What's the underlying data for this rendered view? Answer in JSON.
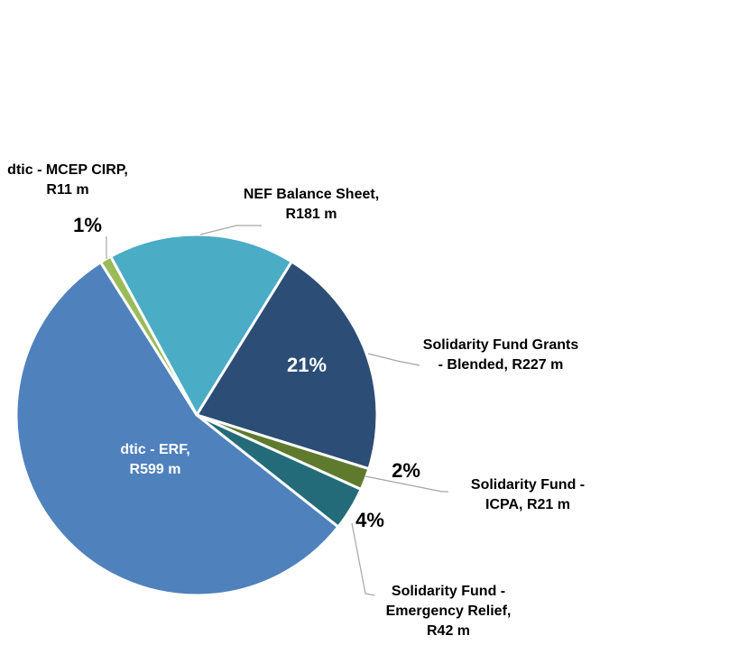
{
  "chart_data": {
    "type": "pie",
    "categories": [
      "NEF Balance Sheet, R181 m",
      "Solidarity Fund Grants - Blended, R227 m",
      "Solidarity Fund - ICPA, R21 m",
      "Solidarity Fund - Emergency Relief, R42 m",
      "dtic - ERF, R599 m",
      "dtic - MCEP CIRP, R11 m"
    ],
    "values": [
      181,
      227,
      21,
      42,
      599,
      11
    ],
    "percent_labels": [
      null,
      "21%",
      "2%",
      "4%",
      null,
      "1%"
    ],
    "colors": [
      "#4bacc6",
      "#2c4d75",
      "#5f7a2d",
      "#246b7a",
      "#4f81bd",
      "#9bbb59"
    ]
  }
}
